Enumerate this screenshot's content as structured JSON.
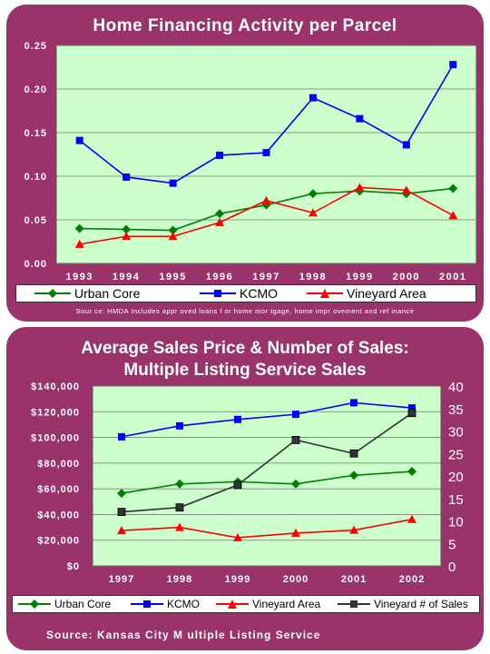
{
  "chart_data": [
    {
      "type": "line",
      "title": "Home Financing Activity per Parcel",
      "x": [
        "1993",
        "1994",
        "1995",
        "1996",
        "1997",
        "1998",
        "1999",
        "2000",
        "2001"
      ],
      "ylim": [
        0,
        0.25
      ],
      "yticks": [
        "0.00",
        "0.05",
        "0.10",
        "0.15",
        "0.20",
        "0.25"
      ],
      "grid": true,
      "legend": "bottom",
      "series": [
        {
          "name": "Urban Core",
          "values": [
            0.04,
            0.039,
            0.038,
            0.057,
            0.067,
            0.08,
            0.083,
            0.08,
            0.086
          ],
          "color": "#008000",
          "marker": "diamond"
        },
        {
          "name": "KCMO",
          "values": [
            0.141,
            0.099,
            0.092,
            0.124,
            0.127,
            0.19,
            0.166,
            0.136,
            0.228
          ],
          "color": "#0000ff",
          "marker": "square"
        },
        {
          "name": "Vineyard Area",
          "values": [
            0.022,
            0.031,
            0.031,
            0.047,
            0.072,
            0.058,
            0.087,
            0.084,
            0.055
          ],
          "color": "#ff0000",
          "marker": "triangle"
        }
      ],
      "source": "Sour ce: HMDA Includes appr oved loans f or home mor tgage, home impr ovement and ref inance"
    },
    {
      "type": "line",
      "title_line1": "Average Sales Price & Number of Sales:",
      "title_line2": "Multiple Listing Service Sales",
      "x": [
        "1997",
        "1998",
        "1999",
        "2000",
        "2001",
        "2002"
      ],
      "ylim": [
        0,
        140000
      ],
      "yticks": [
        "$0",
        "$20,000",
        "$40,000",
        "$60,000",
        "$80,000",
        "$100,000",
        "$120,000",
        "$140,000"
      ],
      "y2lim": [
        0,
        40
      ],
      "y2ticks": [
        "0",
        "5",
        "10",
        "15",
        "20",
        "25",
        "30",
        "35",
        "40"
      ],
      "grid": true,
      "legend": "bottom",
      "series": [
        {
          "name": "Urban Core",
          "axis": "left",
          "values": [
            56500,
            63800,
            65500,
            63800,
            70500,
            73500
          ],
          "color": "#008000",
          "marker": "diamond"
        },
        {
          "name": "KCMO",
          "axis": "left",
          "values": [
            100500,
            109000,
            114000,
            118000,
            127000,
            123000
          ],
          "color": "#0000ff",
          "marker": "square"
        },
        {
          "name": "Vineyard Area",
          "axis": "left",
          "values": [
            27500,
            30000,
            22000,
            25500,
            27800,
            36200
          ],
          "color": "#ff0000",
          "marker": "triangle"
        },
        {
          "name": "Vineyard # of Sales",
          "axis": "right",
          "values": [
            12,
            13,
            18,
            28,
            25,
            34
          ],
          "color": "#333333",
          "marker": "square-dark"
        }
      ],
      "source": "Source: Kansas City M ultiple Listing Service"
    }
  ]
}
